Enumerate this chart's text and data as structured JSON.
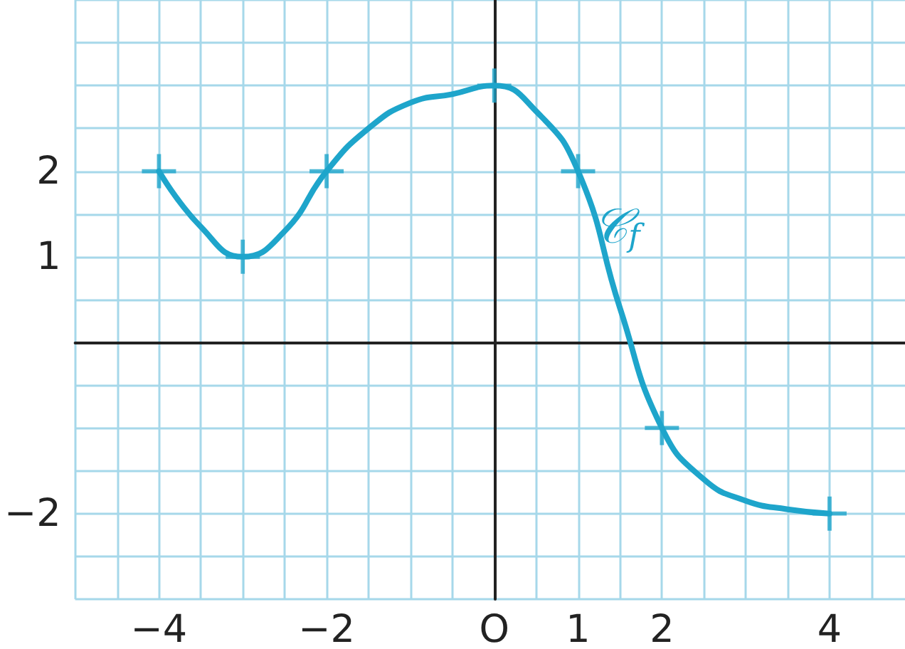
{
  "chart_data": {
    "type": "line",
    "grid": true,
    "xlim": [
      -5,
      4.9
    ],
    "ylim": [
      -3,
      4
    ],
    "xticks": [
      {
        "value": -5,
        "label": null
      },
      {
        "value": -4.5,
        "label": null
      },
      -4,
      {
        "value": -3.5,
        "label": null
      },
      {
        "value": -3,
        "label": null
      },
      {
        "value": -2.5,
        "label": null
      },
      -2,
      {
        "value": -1.5,
        "label": null
      },
      {
        "value": -1,
        "label": null
      },
      {
        "value": -0.5,
        "label": null
      },
      {
        "value": 0,
        "label": "O"
      },
      {
        "value": 0.5,
        "label": null
      },
      1,
      {
        "value": 1.5,
        "label": null
      },
      2,
      {
        "value": 2.5,
        "label": null
      },
      {
        "value": 3,
        "label": null
      },
      {
        "value": 3.5,
        "label": null
      },
      4,
      {
        "value": 4.5,
        "label": null
      }
    ],
    "yticks": [
      {
        "value": -3,
        "label": null
      },
      {
        "value": -2.5,
        "label": null
      },
      -2,
      {
        "value": -1.5,
        "label": null
      },
      {
        "value": -1,
        "label": null
      },
      {
        "value": -0.5,
        "label": null
      },
      {
        "value": 0,
        "label": null
      },
      {
        "value": 0.5,
        "label": null
      },
      1,
      {
        "value": 1.5,
        "label": null
      },
      2,
      {
        "value": 2.5,
        "label": null
      },
      {
        "value": 3,
        "label": null
      },
      {
        "value": 3.5,
        "label": null
      },
      {
        "value": 4,
        "label": null
      }
    ],
    "annotations": [
      "𝒞$_{f}$"
    ],
    "series": [
      {
        "type": "line",
        "color": "#1ea5cb",
        "marker": "none",
        "x": [
          -4,
          -3.5,
          -3,
          -2.5,
          -2,
          -1.5,
          -1,
          -0.5,
          0,
          0.5,
          1,
          1.5,
          2,
          2.5,
          3,
          3.5,
          4
        ],
        "values": [
          2,
          1.35,
          1,
          1.3,
          2,
          2.5,
          2.8,
          2.9,
          3,
          2.7,
          2,
          0.4,
          -1,
          -1.6,
          -1.85,
          -1.95,
          -2
        ]
      },
      {
        "type": "scatter",
        "color": "#1ea5cb",
        "marker": "cross",
        "x": [
          -4,
          -3,
          -2,
          0,
          1,
          2,
          4
        ],
        "values": [
          2,
          1,
          2,
          3,
          2,
          -1,
          -2
        ]
      }
    ]
  }
}
